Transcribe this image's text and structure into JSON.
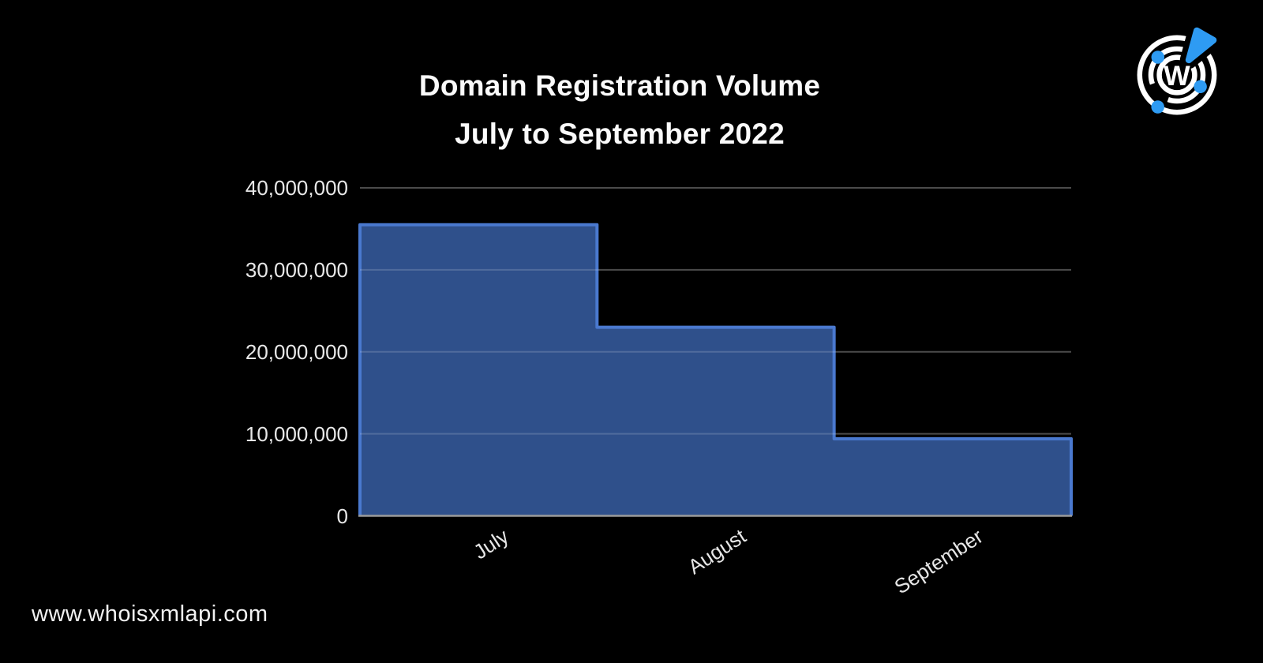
{
  "page": {
    "background": "#000000"
  },
  "header": {
    "title_line1": "Domain Registration Volume",
    "title_line2": "July to September 2022"
  },
  "footer": {
    "website": "www.whoisxmlapi.com"
  },
  "logo": {
    "name": "whoisxmlapi-radar-logo",
    "letter": "W",
    "accent_color": "#2E9BF3",
    "ring_color": "#FFFFFF"
  },
  "chart_data": {
    "type": "area",
    "variant": "stepped",
    "title": "Domain Registration Volume",
    "subtitle": "July to September 2022",
    "series_name": "Domain registration volume",
    "categories": [
      "July",
      "August",
      "September"
    ],
    "values": [
      35500000,
      23000000,
      9400000
    ],
    "ylim": [
      0,
      40000000
    ],
    "yticks": [
      {
        "value": 0,
        "label": "0"
      },
      {
        "value": 10000000,
        "label": "10,000,000"
      },
      {
        "value": 20000000,
        "label": "20,000,000"
      },
      {
        "value": 30000000,
        "label": "30,000,000"
      },
      {
        "value": 40000000,
        "label": "40,000,000"
      }
    ],
    "grid": true,
    "legend": false,
    "xlabel": "",
    "ylabel": "",
    "colors": {
      "fill": "#2F508B",
      "stroke": "#4A79CF",
      "gridline": "rgba(255,255,255,0.16)",
      "axis_line": "#9A9A9A",
      "tick_label": "#E8E8E8"
    }
  }
}
